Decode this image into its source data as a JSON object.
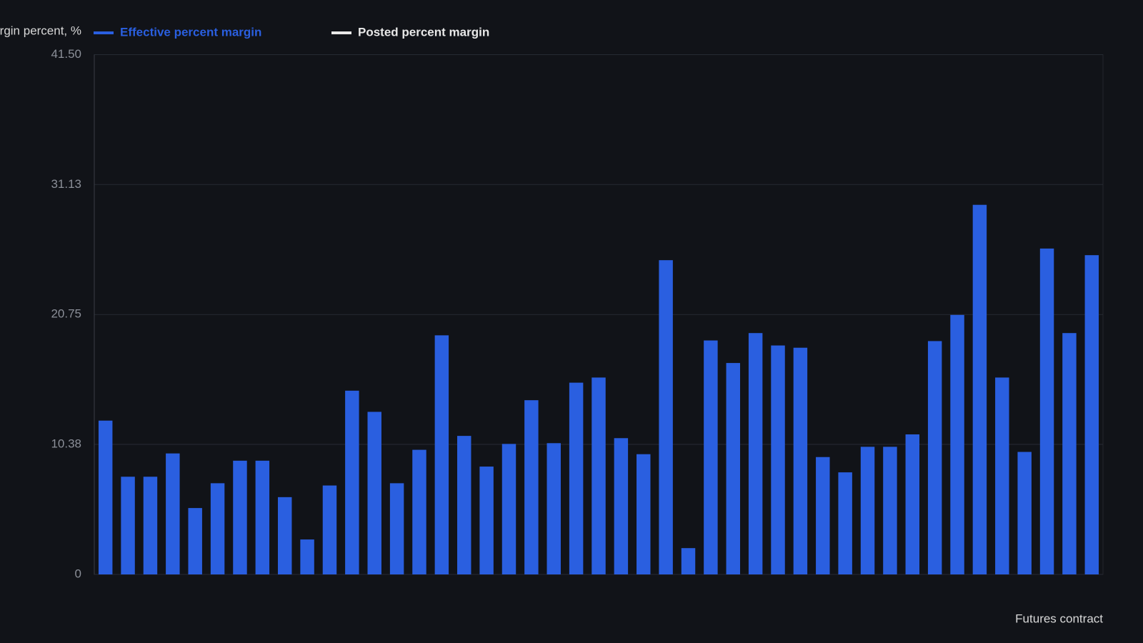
{
  "chart_data": {
    "type": "bar",
    "y_axis_label": "Margin percent, %",
    "x_axis_label": "Futures contract",
    "categories": [
      null,
      null,
      null,
      null,
      null,
      null,
      null,
      null,
      null,
      null,
      null,
      null,
      null,
      null,
      null,
      null,
      null,
      null,
      null,
      null,
      null,
      null,
      null,
      null,
      null,
      null,
      null,
      null,
      null,
      null,
      null,
      null,
      null,
      null,
      null,
      null,
      null,
      null,
      null,
      null,
      null,
      null,
      null,
      null,
      null
    ],
    "series": [
      {
        "name": "Effective percent margin",
        "color": "#2a5fe0",
        "values": [
          12.28,
          7.8,
          7.8,
          9.66,
          5.3,
          7.28,
          9.08,
          9.08,
          6.17,
          2.79,
          7.1,
          14.67,
          12.98,
          7.28,
          9.95,
          19.09,
          11.06,
          8.61,
          10.42,
          13.91,
          10.48,
          15.31,
          15.72,
          10.88,
          9.6,
          25.09,
          2.1,
          18.68,
          16.88,
          19.27,
          18.28,
          18.1,
          9.37,
          8.15,
          10.19,
          10.19,
          11.18,
          18.63,
          20.72,
          29.51,
          15.72,
          9.78,
          26.02,
          19.27,
          25.49
        ]
      },
      {
        "name": "Posted percent margin",
        "color": "#e8e8e8",
        "values": [
          null,
          null,
          null,
          null,
          null,
          null,
          null,
          null,
          null,
          null,
          null,
          null,
          null,
          null,
          null,
          null,
          null,
          null,
          null,
          null,
          null,
          null,
          null,
          null,
          null,
          null,
          null,
          null,
          null,
          null,
          null,
          null,
          null,
          null,
          null,
          null,
          null,
          null,
          null,
          null,
          null,
          null,
          null,
          null,
          null
        ]
      }
    ],
    "ylim": [
      0,
      41.5
    ],
    "yticks": [
      0,
      10.38,
      20.75,
      31.13,
      {
        "value": 41.5,
        "label": "41.50"
      }
    ],
    "grid": true
  }
}
